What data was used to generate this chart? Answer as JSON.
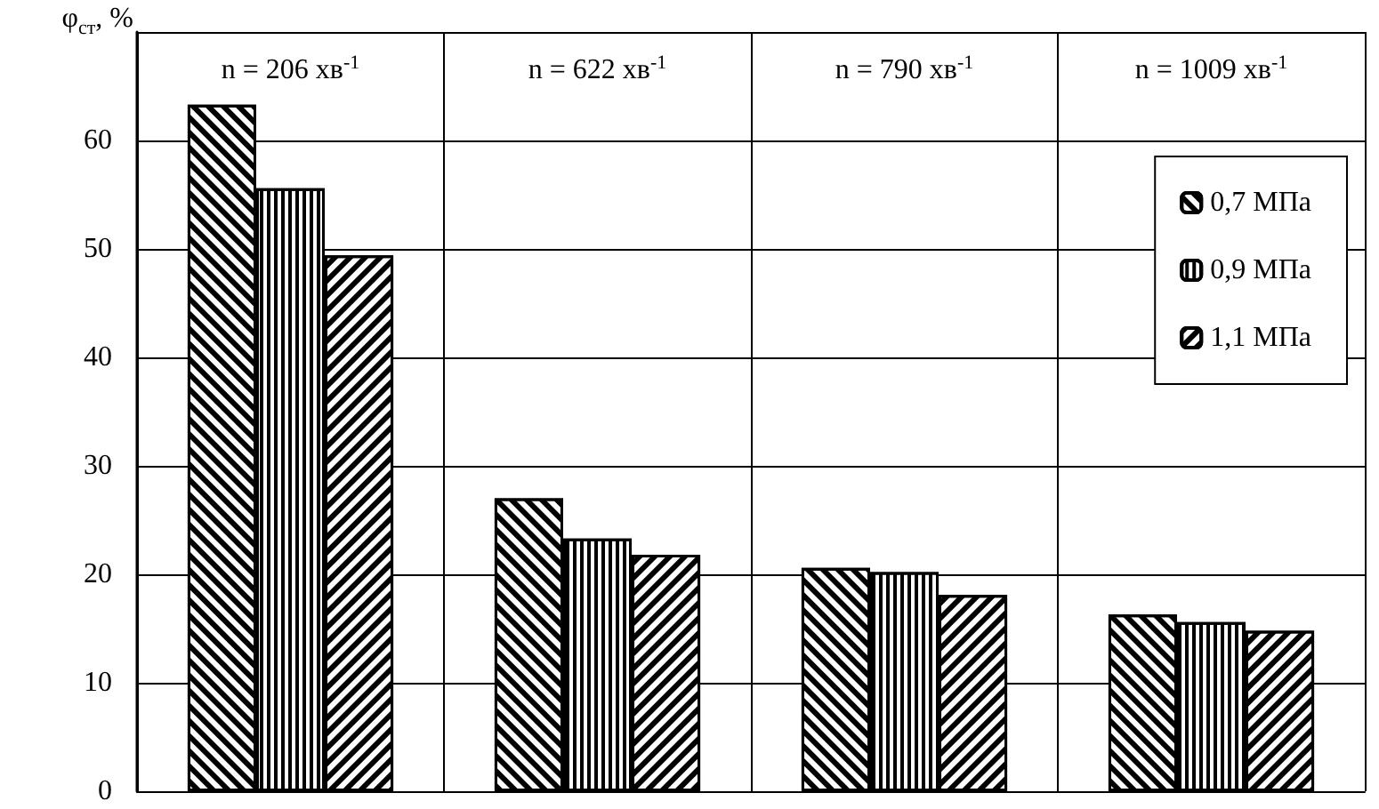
{
  "chart_data": {
    "type": "bar",
    "ylabel": "φ$_{ст}$, %",
    "categories": [
      "n = 206 хв$^{-1}$",
      "n = 622 хв$^{-1}$",
      "n = 790 хв$^{-1}$",
      "n = 1009 хв$^{-1}$"
    ],
    "series": [
      {
        "name": "0,7 МПа",
        "color": "#000000",
        "values": [
          63.3,
          27.0,
          20.6,
          16.3
        ]
      },
      {
        "name": "0,9 МПа",
        "color": "#000000",
        "values": [
          55.6,
          23.3,
          20.2,
          15.6
        ]
      },
      {
        "name": "1,1 МПа",
        "color": "#000000",
        "values": [
          49.4,
          21.8,
          18.1,
          14.8
        ]
      }
    ],
    "ylim": [
      0,
      70
    ],
    "yticks": [
      0,
      10,
      20,
      30,
      40,
      50,
      60,
      {
        "value": 70,
        "label": null
      }
    ],
    "grid": true,
    "legend": "top right"
  }
}
